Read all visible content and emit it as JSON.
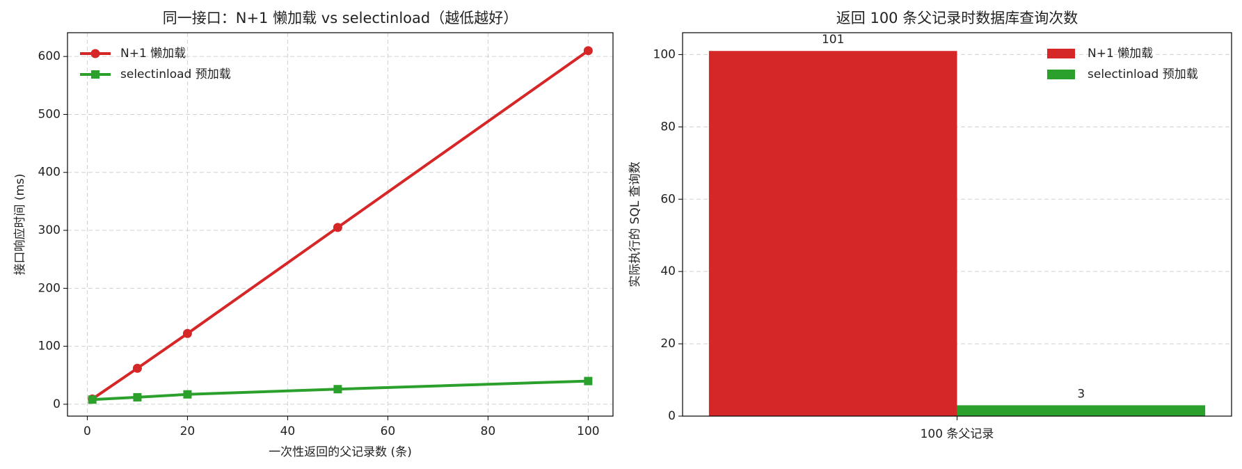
{
  "chart_data": [
    {
      "type": "line",
      "title": "同一接口：N+1 懒加载 vs selectinload（越低越好）",
      "x_label": "一次性返回的父记录数 (条)",
      "y_label": "接口响应时间 (ms)",
      "x": [
        1,
        10,
        20,
        50,
        100
      ],
      "series": [
        {
          "name": "N+1 懒加载",
          "color": "#d62728",
          "marker": "circle",
          "values": [
            9,
            62,
            122,
            305,
            610
          ]
        },
        {
          "name": "selectinload 预加载",
          "color": "#2ca02c",
          "marker": "square",
          "values": [
            8,
            12,
            17,
            26,
            40
          ]
        }
      ],
      "xlim": [
        -3.95,
        104.95
      ],
      "ylim": [
        -20.5,
        641
      ],
      "xticks": [
        0,
        20,
        40,
        60,
        80,
        100
      ],
      "yticks": [
        0,
        100,
        200,
        300,
        400,
        500,
        600
      ],
      "grid": true,
      "legend": "upper-left"
    },
    {
      "type": "bar",
      "title": "返回 100 条父记录时数据库查询次数",
      "y_label": "实际执行的 SQL 查询数",
      "categories": [
        "100 条父记录"
      ],
      "series": [
        {
          "name": "N+1 懒加载",
          "color": "#d62728",
          "values": [
            101
          ]
        },
        {
          "name": "selectinload 预加载",
          "color": "#2ca02c",
          "values": [
            3
          ]
        }
      ],
      "ylim": [
        0,
        106.05
      ],
      "yticks": [
        0,
        20,
        40,
        60,
        80,
        100
      ],
      "grid": true,
      "legend": "upper-right"
    }
  ]
}
